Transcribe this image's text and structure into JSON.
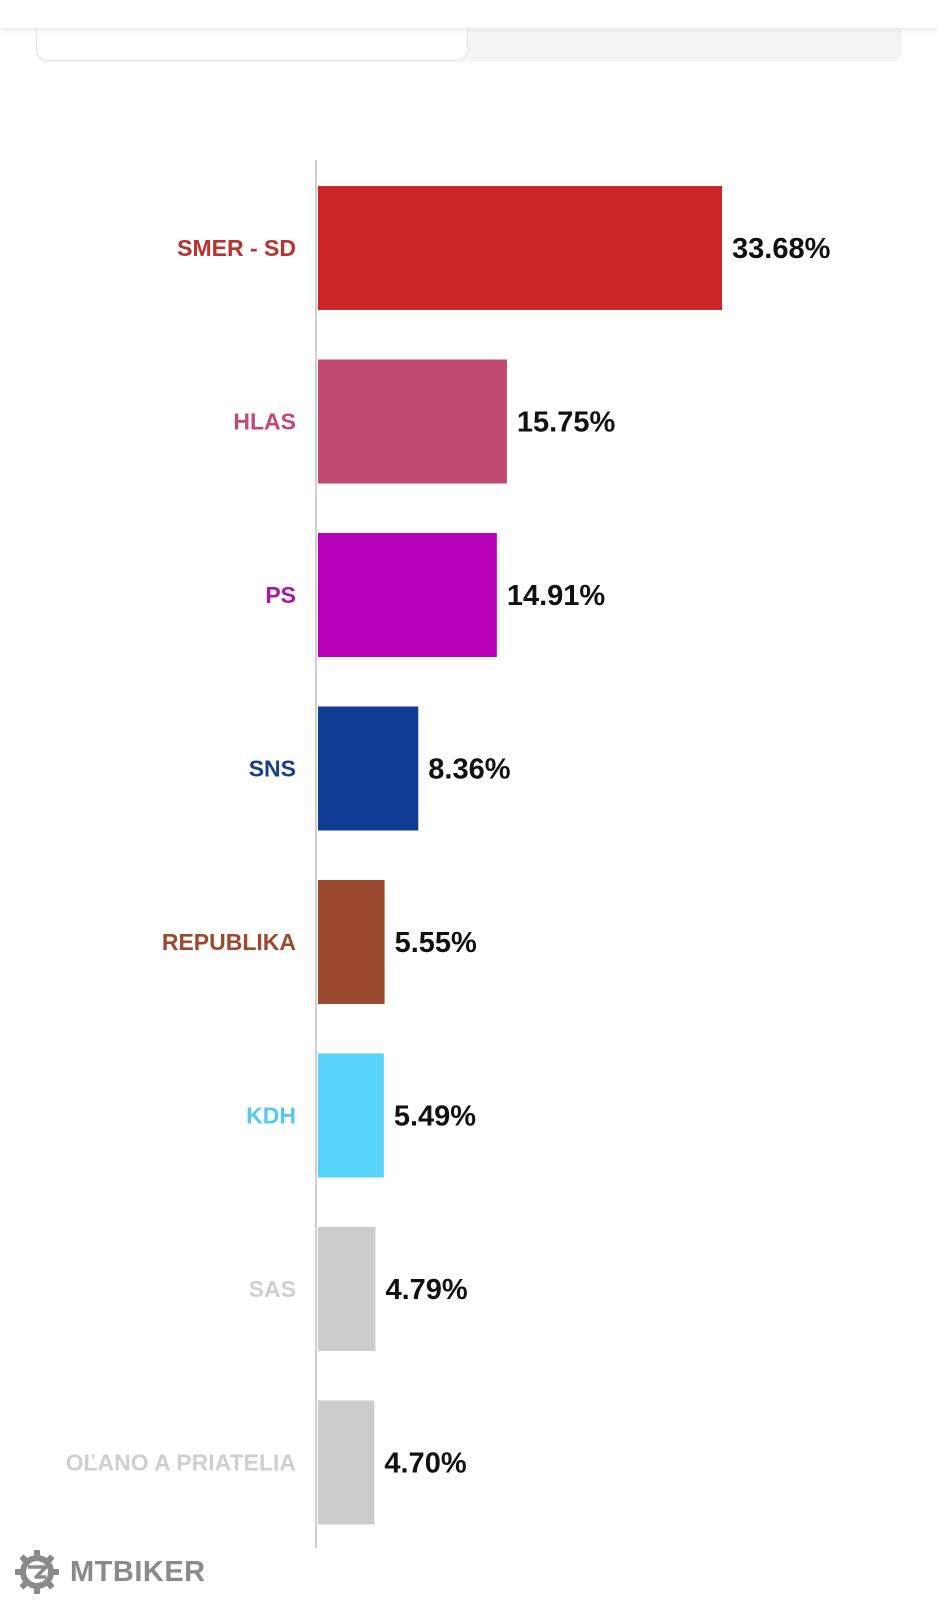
{
  "chart_data": {
    "type": "bar",
    "orientation": "horizontal",
    "categories": [
      "SMER - SD",
      "HLAS",
      "PS",
      "SNS",
      "REPUBLIKA",
      "KDH",
      "SAS",
      "OĽANO A PRIATELIA"
    ],
    "values": [
      33.68,
      15.75,
      14.91,
      8.36,
      5.55,
      5.49,
      4.79,
      4.7
    ],
    "value_labels": [
      "33.68%",
      "15.75%",
      "14.91%",
      "8.36%",
      "5.55%",
      "5.49%",
      "4.79%",
      "4.70%"
    ],
    "colors": [
      "#cc2528",
      "#c14a73",
      "#b800b8",
      "#0e3d93",
      "#9b4a30",
      "#57d3fa",
      "#cccccc",
      "#cccccc"
    ],
    "label_colors": [
      "#b83230",
      "#c14a73",
      "#a818a8",
      "#1a3f8a",
      "#9b4a30",
      "#57c8f0",
      "#cfcfcf",
      "#cfcfcf"
    ],
    "title": "",
    "xlabel": "",
    "ylabel": "",
    "grid": false
  },
  "watermark": {
    "text": "MTBIKER",
    "icon": "gear-logo-icon",
    "color": "#8a8a8a"
  }
}
